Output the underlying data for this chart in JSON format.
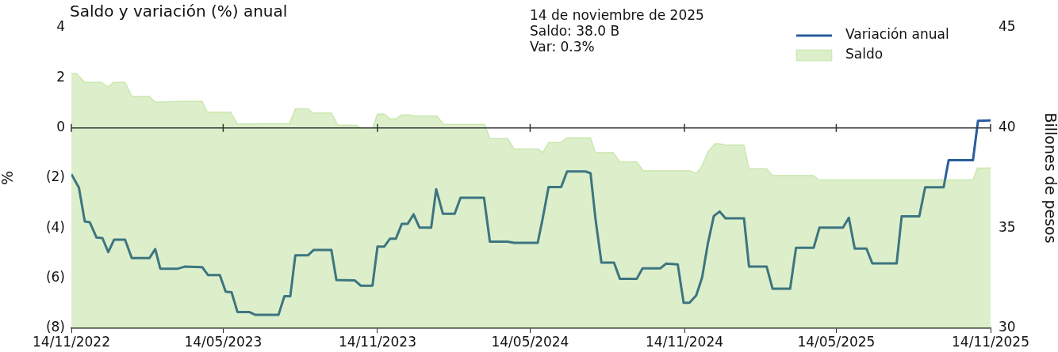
{
  "chart_data": {
    "type": "line",
    "title": "Saldo y variación (%) anual",
    "ylabel": "%",
    "y2label": "Billones de pesos",
    "annotations": [
      "14 de noviembre de 2025",
      "Saldo: 38.0 B",
      "Var: 0.3%"
    ],
    "series": [
      {
        "name": "Variación anual",
        "color": "#2b5c9e",
        "x": [
          "2022-11-14",
          "2022-11-23",
          "2022-11-30",
          "2022-12-06",
          "2022-12-14",
          "2022-12-21",
          "2022-12-28",
          "2023-01-04",
          "2023-01-17",
          "2023-01-25",
          "2023-02-15",
          "2023-02-22",
          "2023-02-28",
          "2023-03-21",
          "2023-03-29",
          "2023-04-19",
          "2023-04-26",
          "2023-05-10",
          "2023-05-17",
          "2023-05-24",
          "2023-05-31",
          "2023-06-14",
          "2023-06-21",
          "2023-07-19",
          "2023-07-26",
          "2023-08-02",
          "2023-08-08",
          "2023-08-23",
          "2023-08-30",
          "2023-09-20",
          "2023-09-26",
          "2023-10-18",
          "2023-10-25",
          "2023-11-08",
          "2023-11-14",
          "2023-11-22",
          "2023-11-29",
          "2023-12-06",
          "2023-12-13",
          "2023-12-20",
          "2023-12-27",
          "2024-01-03",
          "2024-01-17",
          "2024-01-23",
          "2024-01-31",
          "2024-02-14",
          "2024-02-21",
          "2024-03-20",
          "2024-03-27",
          "2024-04-17",
          "2024-04-25",
          "2024-05-23",
          "2024-05-29",
          "2024-06-05",
          "2024-06-20",
          "2024-06-27",
          "2024-07-19",
          "2024-07-25",
          "2024-07-31",
          "2024-08-07",
          "2024-08-22",
          "2024-08-29",
          "2024-09-18",
          "2024-09-25",
          "2024-10-16",
          "2024-10-23",
          "2024-11-06",
          "2024-11-13",
          "2024-11-20",
          "2024-11-28",
          "2024-12-05",
          "2024-12-12",
          "2024-12-19",
          "2024-12-26",
          "2025-01-02",
          "2025-01-24",
          "2025-01-30",
          "2025-02-20",
          "2025-02-27",
          "2025-03-20",
          "2025-03-27",
          "2025-04-17",
          "2025-04-24",
          "2025-05-22",
          "2025-05-29",
          "2025-06-05",
          "2025-06-19",
          "2025-06-26",
          "2025-07-25",
          "2025-07-31",
          "2025-08-21",
          "2025-08-28",
          "2025-09-19",
          "2025-09-25",
          "2025-10-24",
          "2025-10-30",
          "2025-11-14"
        ],
        "values": [
          -1.85,
          -2.39,
          -3.74,
          -3.77,
          -4.38,
          -4.4,
          -4.96,
          -4.46,
          -4.46,
          -5.2,
          -5.2,
          -4.84,
          -5.62,
          -5.62,
          -5.54,
          -5.56,
          -5.88,
          -5.88,
          -6.54,
          -6.56,
          -7.35,
          -7.35,
          -7.46,
          -7.46,
          -6.72,
          -6.72,
          -5.09,
          -5.09,
          -4.87,
          -4.87,
          -6.07,
          -6.09,
          -6.3,
          -6.3,
          -4.74,
          -4.74,
          -4.42,
          -4.42,
          -3.83,
          -3.83,
          -3.45,
          -3.98,
          -3.98,
          -2.45,
          -3.43,
          -3.43,
          -2.79,
          -2.79,
          -4.54,
          -4.54,
          -4.59,
          -4.59,
          -3.61,
          -2.36,
          -2.36,
          -1.74,
          -1.74,
          -1.81,
          -3.66,
          -5.38,
          -5.38,
          -6.03,
          -6.03,
          -5.61,
          -5.61,
          -5.42,
          -5.45,
          -6.98,
          -6.98,
          -6.69,
          -5.98,
          -4.6,
          -3.52,
          -3.34,
          -3.61,
          -3.61,
          -5.54,
          -5.54,
          -6.42,
          -6.42,
          -4.79,
          -4.79,
          -3.98,
          -3.98,
          -3.59,
          -4.82,
          -4.82,
          -5.41,
          -5.41,
          -3.53,
          -3.53,
          -2.37,
          -2.37,
          -1.29,
          -1.29,
          0.28,
          0.3
        ]
      },
      {
        "name": "Saldo",
        "type": "area",
        "axis": "y2",
        "color": "#73bf2b",
        "x": [
          "2022-11-14",
          "2022-11-20",
          "2022-11-30",
          "2022-12-20",
          "2022-12-28",
          "2023-01-03",
          "2023-01-17",
          "2023-01-25",
          "2023-02-15",
          "2023-02-22",
          "2023-03-26",
          "2023-04-19",
          "2023-04-25",
          "2023-05-23",
          "2023-05-31",
          "2023-08-01",
          "2023-08-08",
          "2023-08-23",
          "2023-08-29",
          "2023-09-20",
          "2023-09-28",
          "2023-10-20",
          "2023-10-25",
          "2023-11-08",
          "2023-11-14",
          "2023-11-22",
          "2023-11-29",
          "2023-12-06",
          "2023-12-13",
          "2023-12-22",
          "2023-12-28",
          "2024-01-24",
          "2024-02-01",
          "2024-03-21",
          "2024-03-27",
          "2024-04-17",
          "2024-04-25",
          "2024-05-24",
          "2024-05-29",
          "2024-06-05",
          "2024-06-20",
          "2024-06-27",
          "2024-07-25",
          "2024-07-31",
          "2024-08-21",
          "2024-08-29",
          "2024-09-18",
          "2024-09-26",
          "2024-11-20",
          "2024-11-28",
          "2024-12-04",
          "2024-12-12",
          "2024-12-20",
          "2024-12-26",
          "2025-01-02",
          "2025-01-24",
          "2025-01-30",
          "2025-02-20",
          "2025-02-27",
          "2025-04-17",
          "2025-04-23",
          "2025-10-24",
          "2025-10-29",
          "2025-11-14"
        ],
        "values": [
          42.72,
          42.72,
          42.28,
          42.28,
          42.04,
          42.28,
          42.28,
          41.58,
          41.58,
          41.29,
          41.33,
          41.33,
          40.79,
          40.79,
          40.2,
          40.22,
          40.95,
          40.95,
          40.75,
          40.75,
          40.13,
          40.13,
          40.0,
          40.0,
          40.7,
          40.7,
          40.46,
          40.46,
          40.66,
          40.66,
          40.6,
          40.6,
          40.17,
          40.17,
          39.47,
          39.47,
          38.95,
          38.95,
          38.77,
          39.28,
          39.28,
          39.51,
          39.51,
          38.77,
          38.77,
          38.31,
          38.31,
          37.87,
          37.87,
          37.74,
          38.03,
          38.82,
          39.21,
          39.21,
          39.15,
          39.15,
          37.96,
          37.96,
          37.63,
          37.63,
          37.41,
          37.41,
          37.99,
          38.0
        ]
      }
    ],
    "xlim": [
      "2022-11-14",
      "2025-11-14"
    ],
    "xticks": [
      {
        "value": "2022-11-14",
        "label": "14/11/2022"
      },
      {
        "value": "2023-05-14",
        "label": "14/05/2023"
      },
      {
        "value": "2023-11-14",
        "label": "14/11/2023"
      },
      {
        "value": "2024-05-14",
        "label": "14/05/2024"
      },
      {
        "value": "2024-11-14",
        "label": "14/11/2024"
      },
      {
        "value": "2025-05-14",
        "label": "14/05/2025"
      },
      {
        "value": "2025-11-14",
        "label": "14/11/2025"
      }
    ],
    "ylim": [
      -8,
      4
    ],
    "yticks": [
      {
        "value": -8,
        "label": "(8)"
      },
      {
        "value": -6,
        "label": "(6)"
      },
      {
        "value": -4,
        "label": "(4)"
      },
      {
        "value": -2,
        "label": "(2)"
      },
      0,
      2,
      4
    ],
    "y2lim": [
      30,
      45
    ],
    "y2ticks": [
      30,
      35,
      40,
      45
    ],
    "ref_lines": [
      {
        "axis": "y",
        "value": 0,
        "color": "#333333"
      }
    ],
    "grid": false,
    "legend": "top right"
  }
}
